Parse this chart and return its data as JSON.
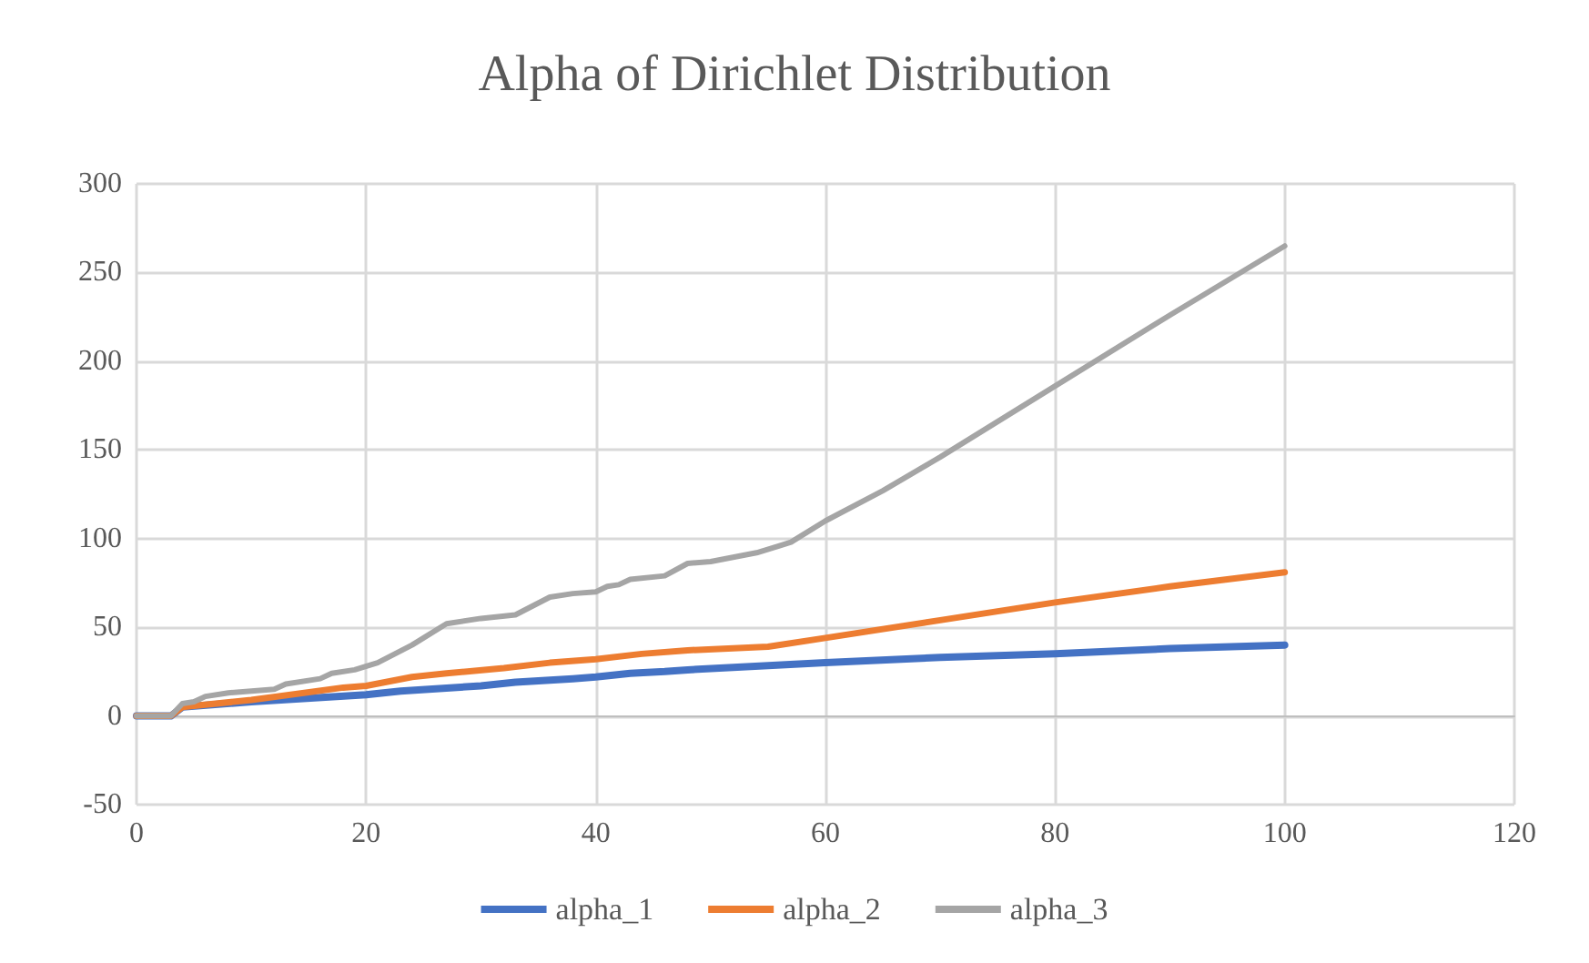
{
  "chart_data": {
    "type": "line",
    "title": "Alpha of Dirichlet Distribution",
    "xlim": [
      0,
      120
    ],
    "xticks": [
      0,
      20,
      40,
      60,
      80,
      100,
      120
    ],
    "ylim": [
      -50,
      300
    ],
    "yticks": [
      -50,
      0,
      50,
      100,
      150,
      200,
      250,
      300
    ],
    "grid": true,
    "legend": "bottom",
    "marker": "none",
    "line_style": "solid",
    "series": [
      {
        "name": "alpha_1",
        "color": "#4472c4",
        "x": [
          0,
          3,
          4,
          10,
          20,
          23,
          30,
          33,
          38,
          40,
          43,
          46,
          48,
          60,
          70,
          80,
          90,
          100
        ],
        "values": [
          0,
          0,
          5,
          8,
          12,
          14,
          17,
          19,
          21,
          22,
          24,
          25,
          26,
          30,
          33,
          35,
          38,
          40
        ]
      },
      {
        "name": "alpha_2",
        "color": "#ed7d31",
        "x": [
          0,
          3,
          4,
          10,
          18,
          20,
          24,
          27,
          32,
          36,
          40,
          44,
          48,
          55,
          60,
          70,
          80,
          90,
          100
        ],
        "values": [
          0,
          0,
          5,
          9,
          16,
          17,
          22,
          24,
          27,
          30,
          32,
          35,
          37,
          39,
          44,
          54,
          64,
          73,
          81
        ]
      },
      {
        "name": "alpha_3",
        "color": "#a5a5a5",
        "x": [
          0,
          3,
          4,
          5,
          6,
          8,
          12,
          13,
          16,
          17,
          19,
          21,
          24,
          27,
          30,
          33,
          36,
          38,
          40,
          41,
          42,
          43,
          46,
          48,
          50,
          54,
          56,
          57,
          60,
          65,
          70,
          80,
          90,
          100
        ],
        "values": [
          0,
          0,
          7,
          8,
          11,
          13,
          15,
          18,
          21,
          24,
          26,
          30,
          40,
          52,
          55,
          57,
          67,
          69,
          70,
          73,
          74,
          77,
          79,
          86,
          87,
          92,
          96,
          98,
          110,
          127,
          146,
          186,
          226,
          265
        ]
      }
    ]
  }
}
